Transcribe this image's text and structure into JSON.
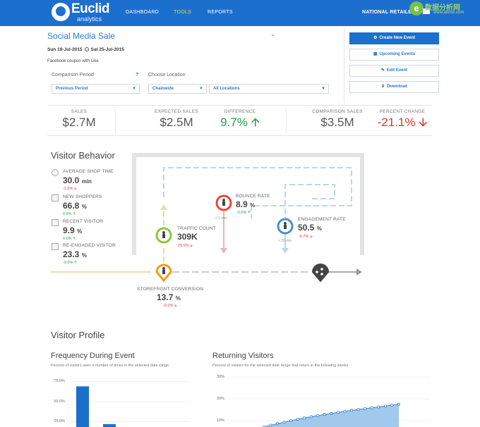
{
  "nav": {
    "brand": "Euclid",
    "brand_sub": "analytics",
    "items": [
      {
        "label": "DASHBOARD",
        "active": false
      },
      {
        "label": "TOOLS",
        "active": true
      },
      {
        "label": "REPORTS",
        "active": false
      }
    ],
    "retailer": "NATIONAL RETAILER",
    "watermark": {
      "mark": "e",
      "text": "数据分析网",
      "url": "www.afenxi.com"
    }
  },
  "event": {
    "title": "Social Media Sale",
    "start_date": "Sun 19-Jul-2015",
    "end_date": "Sat 25-Jul-2015",
    "description": "Facebook coupon with Like",
    "comparison_label": "Comparison Period",
    "help": "?",
    "comparison_value": "Previous Period",
    "location_label": "Choose Location",
    "location_group": "Chainwide",
    "location_value": "All Locations"
  },
  "actions": [
    {
      "label": "Create New Event",
      "icon": "gear-icon",
      "glyph": "⚙"
    },
    {
      "label": "Upcoming Events",
      "icon": "calendar-icon",
      "glyph": "▦"
    },
    {
      "label": "Edit Event",
      "icon": "edit-icon",
      "glyph": "✎"
    },
    {
      "label": "Download",
      "icon": "download-icon",
      "glyph": "⬇"
    }
  ],
  "kpis": [
    {
      "label": "SALES",
      "value": "$2.7M",
      "trend": "none"
    },
    {
      "label": "EXPECTED SALES",
      "value": "$2.5M",
      "trend": "none"
    },
    {
      "label": "DIFFERENCE",
      "value": "9.7%",
      "trend": "up"
    },
    {
      "label": "COMPARISON SALES",
      "value": "$3.5M",
      "trend": "none"
    },
    {
      "label": "PERCENT CHANGE",
      "value": "-21.1%",
      "trend": "down"
    }
  ],
  "visitor_behavior": {
    "title": "Visitor Behavior",
    "metrics": [
      {
        "label": "AVERAGE SHOP TIME",
        "value": "30.0",
        "unit": "min",
        "delta": "-1.5%",
        "trend": "down",
        "icon": "clock-icon"
      },
      {
        "label": "NEW SHOPPERS",
        "value": "66.8",
        "unit": "%",
        "delta": "0.0%",
        "trend": "up",
        "icon": "calendar-icon"
      },
      {
        "label": "RECENT VISITOR",
        "value": "9.9",
        "unit": "%",
        "delta": "0.6%",
        "trend": "up",
        "icon": "calendar-icon"
      },
      {
        "label": "RE-ENGAGED VISITOR",
        "value": "23.3",
        "unit": "%",
        "delta": "-0.0%",
        "trend": "up",
        "icon": "calendar-icon"
      }
    ],
    "flow": {
      "traffic": {
        "label": "TRAFFIC COUNT",
        "value": "309K",
        "delta": "29.6%",
        "trend": "down"
      },
      "bounce": {
        "label": "BOUNCE RATE",
        "value": "8.9",
        "unit": "%",
        "delta": "-0.0%",
        "trend": "up",
        "time": "< 5 min"
      },
      "engagement": {
        "label": "ENGAGEMENT RATE",
        "value": "50.5",
        "unit": "%",
        "delta": "-0.7%",
        "trend": "down",
        "time": "> 20 min"
      },
      "storefront": {
        "label": "STOREFRONT CONVERSION",
        "value": "13.7",
        "unit": "%",
        "delta": "-0.1%",
        "trend": "down"
      }
    },
    "colors": {
      "traffic": "#8cc63f",
      "bounce": "#e8463a",
      "engagement": "#4a8fd3",
      "storefront": "#f39c12",
      "exit": "#444444"
    }
  },
  "visitor_profile": {
    "title": "Visitor Profile",
    "frequency": {
      "title": "Frequency During Event",
      "desc": "Percent of visitors seen x number of times in the selected date range.",
      "ticks": [
        "75.0%",
        "50.0%",
        "25.0%"
      ]
    },
    "returning": {
      "title": "Returning Visitors",
      "desc": "Percent of visitors for the selected date range that return in the following weeks.",
      "ticks": [
        "30%",
        "20%",
        "10%"
      ]
    }
  },
  "chart_data": [
    {
      "type": "bar",
      "title": "Frequency During Event",
      "ylim": [
        0,
        100
      ],
      "yticks": [
        25,
        50,
        75
      ],
      "values": [
        69,
        22
      ]
    },
    {
      "type": "area",
      "title": "Returning Visitors",
      "ylim": [
        0,
        35
      ],
      "yticks": [
        10,
        20,
        30
      ],
      "x": [
        1,
        2,
        3,
        4,
        5,
        6,
        7,
        8,
        9,
        10,
        11,
        12,
        13,
        14,
        15,
        16,
        17,
        18,
        19,
        20,
        21,
        22,
        23,
        24,
        25,
        26
      ],
      "values": [
        2.0,
        3.2,
        4.4,
        5.4,
        6.3,
        7.1,
        7.9,
        8.6,
        9.3,
        10.0,
        10.6,
        11.2,
        11.8,
        12.3,
        12.8,
        13.3,
        13.8,
        14.3,
        14.7,
        15.1,
        15.5,
        15.9,
        16.3,
        16.7,
        17.1,
        17.5
      ],
      "color": "#8fbfe8"
    }
  ]
}
